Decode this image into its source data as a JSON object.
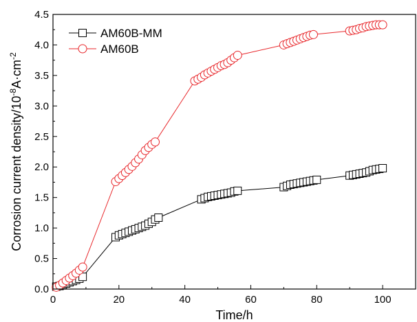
{
  "chart_data": {
    "type": "line",
    "xlabel": "Time/h",
    "ylabel_parts": [
      "Corrosion current density/10",
      "-8",
      "A·cm",
      "-2"
    ],
    "xlim": [
      0,
      110
    ],
    "ylim": [
      0,
      4.5
    ],
    "x_ticks": [
      0,
      20,
      40,
      60,
      80,
      100
    ],
    "y_ticks": [
      0.0,
      0.5,
      1.0,
      1.5,
      2.0,
      2.5,
      3.0,
      3.5,
      4.0,
      4.5
    ],
    "x_tick_labels": [
      "0",
      "20",
      "40",
      "60",
      "80",
      "100"
    ],
    "y_tick_labels": [
      "0.0",
      "0.5",
      "1.0",
      "1.5",
      "2.0",
      "2.5",
      "3.0",
      "3.5",
      "4.0",
      "4.5"
    ],
    "grid": false,
    "legend_position": "top-left",
    "series": [
      {
        "name": "AM60B-MM",
        "color": "#000000",
        "marker": "square",
        "x": [
          1,
          2,
          3,
          4,
          5,
          6,
          7,
          8,
          9,
          19,
          20,
          21,
          22,
          23,
          24,
          25,
          26,
          27,
          28,
          29,
          30,
          31,
          32,
          45,
          46,
          47,
          48,
          49,
          50,
          51,
          52,
          53,
          54,
          55,
          56,
          70,
          71,
          72,
          73,
          74,
          75,
          76,
          77,
          78,
          79,
          80,
          90,
          91,
          92,
          93,
          94,
          95,
          96,
          97,
          98,
          99,
          100
        ],
        "y": [
          0.04,
          0.05,
          0.07,
          0.09,
          0.11,
          0.13,
          0.15,
          0.17,
          0.2,
          0.85,
          0.88,
          0.9,
          0.92,
          0.94,
          0.96,
          0.98,
          1.0,
          1.02,
          1.04,
          1.07,
          1.1,
          1.14,
          1.17,
          1.47,
          1.49,
          1.51,
          1.52,
          1.53,
          1.54,
          1.55,
          1.56,
          1.57,
          1.58,
          1.6,
          1.61,
          1.67,
          1.69,
          1.71,
          1.72,
          1.73,
          1.74,
          1.75,
          1.76,
          1.77,
          1.78,
          1.79,
          1.86,
          1.87,
          1.88,
          1.89,
          1.9,
          1.91,
          1.93,
          1.95,
          1.96,
          1.97,
          1.98
        ]
      },
      {
        "name": "AM60B",
        "color": "#e8262a",
        "marker": "circle",
        "x": [
          1,
          2,
          3,
          4,
          5,
          6,
          7,
          8,
          9,
          19,
          20,
          21,
          22,
          23,
          24,
          25,
          26,
          27,
          28,
          29,
          30,
          31,
          43,
          44,
          45,
          46,
          47,
          48,
          49,
          50,
          51,
          52,
          53,
          54,
          55,
          56,
          70,
          71,
          72,
          73,
          74,
          75,
          76,
          77,
          78,
          79,
          90,
          91,
          92,
          93,
          94,
          95,
          96,
          97,
          98,
          99,
          100
        ],
        "y": [
          0.03,
          0.06,
          0.1,
          0.14,
          0.18,
          0.22,
          0.26,
          0.31,
          0.36,
          1.76,
          1.81,
          1.86,
          1.91,
          1.96,
          2.01,
          2.07,
          2.13,
          2.2,
          2.27,
          2.32,
          2.37,
          2.41,
          3.41,
          3.44,
          3.47,
          3.51,
          3.54,
          3.57,
          3.6,
          3.63,
          3.66,
          3.68,
          3.71,
          3.75,
          3.79,
          3.83,
          4.0,
          4.02,
          4.04,
          4.06,
          4.08,
          4.1,
          4.12,
          4.14,
          4.16,
          4.17,
          4.23,
          4.24,
          4.25,
          4.27,
          4.28,
          4.3,
          4.31,
          4.32,
          4.33,
          4.33,
          4.33
        ]
      }
    ]
  }
}
